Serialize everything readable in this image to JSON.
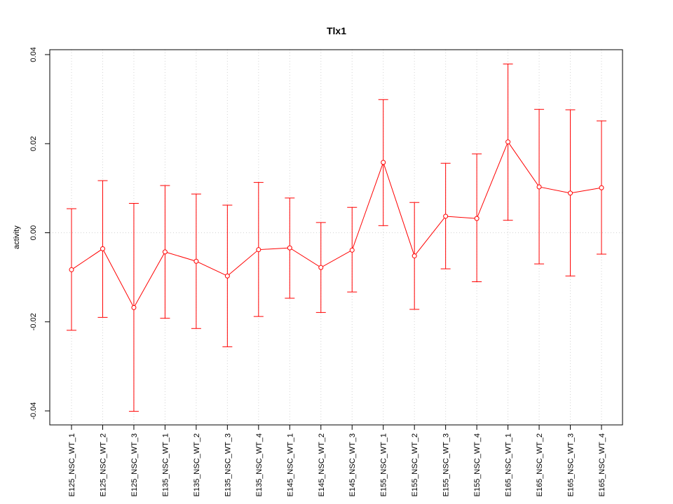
{
  "chart_data": {
    "type": "line",
    "title": "Tlx1",
    "xlabel": "",
    "ylabel": "activity",
    "ylim": [
      -0.04,
      0.04
    ],
    "yticks": [
      -0.04,
      -0.02,
      0.0,
      0.02,
      0.04
    ],
    "ytick_labels": [
      "-0.04",
      "-0.02",
      "0.00",
      "0.02",
      "0.04"
    ],
    "grid": true,
    "reference_line": 0,
    "color": "#ff0000",
    "categories": [
      "E125_NSC_WT_1",
      "E125_NSC_WT_2",
      "E125_NSC_WT_3",
      "E135_NSC_WT_1",
      "E135_NSC_WT_2",
      "E135_NSC_WT_3",
      "E135_NSC_WT_4",
      "E145_NSC_WT_1",
      "E145_NSC_WT_2",
      "E145_NSC_WT_3",
      "E155_NSC_WT_1",
      "E155_NSC_WT_2",
      "E155_NSC_WT_3",
      "E155_NSC_WT_4",
      "E165_NSC_WT_1",
      "E165_NSC_WT_2",
      "E165_NSC_WT_3",
      "E165_NSC_WT_4"
    ],
    "series": [
      {
        "values": [
          -0.0083,
          -0.0036,
          -0.0168,
          -0.0043,
          -0.0064,
          -0.0097,
          -0.0038,
          -0.0034,
          -0.0078,
          -0.0039,
          0.0158,
          -0.0052,
          0.0037,
          0.0032,
          0.0204,
          0.0103,
          0.0089,
          0.0101
        ],
        "upper": [
          0.0054,
          0.0117,
          0.0066,
          0.0106,
          0.0087,
          0.0062,
          0.0113,
          0.0078,
          0.0023,
          0.0057,
          0.0299,
          0.0068,
          0.0156,
          0.0177,
          0.0379,
          0.0277,
          0.0276,
          0.0251
        ],
        "lower": [
          -0.0219,
          -0.019,
          -0.0401,
          -0.0192,
          -0.0215,
          -0.0256,
          -0.0188,
          -0.0147,
          -0.0179,
          -0.0133,
          0.0016,
          -0.0172,
          -0.0081,
          -0.011,
          0.0028,
          -0.007,
          -0.0097,
          -0.0048
        ]
      }
    ]
  }
}
